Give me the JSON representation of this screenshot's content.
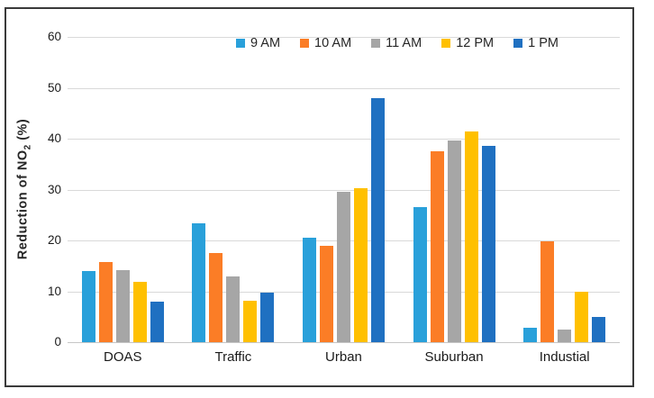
{
  "y_axis": {
    "title_prefix": "Reduction of NO",
    "title_sub": "2",
    "title_suffix": " (%)"
  },
  "chart_data": {
    "type": "bar",
    "title": "",
    "xlabel": "",
    "ylabel": "Reduction of NO2 (%)",
    "ylim": [
      0,
      60
    ],
    "yticks": [
      0,
      10,
      20,
      30,
      40,
      50,
      60
    ],
    "grid": "horizontal",
    "legend_position": "top-center",
    "categories": [
      "DOAS",
      "Traffic",
      "Urban",
      "Suburban",
      "Industial"
    ],
    "series": [
      {
        "name": "9 AM",
        "color": "#29A0DA",
        "values": [
          14.0,
          23.3,
          20.6,
          26.5,
          2.9
        ]
      },
      {
        "name": "10 AM",
        "color": "#FB7D26",
        "values": [
          15.8,
          17.5,
          19.0,
          37.6,
          19.9
        ]
      },
      {
        "name": "11 AM",
        "color": "#A6A6A6",
        "values": [
          14.2,
          13.0,
          29.6,
          39.7,
          2.4
        ]
      },
      {
        "name": "12 PM",
        "color": "#FFC000",
        "values": [
          11.8,
          8.2,
          30.3,
          41.5,
          10.0
        ]
      },
      {
        "name": "1 PM",
        "color": "#1F70C1",
        "values": [
          8.0,
          9.8,
          48.0,
          38.5,
          5.0
        ]
      }
    ],
    "gridline_color": "#D9D9D9",
    "text_color": "#1A1A1A",
    "frame_border_color": "#3A3A3A"
  }
}
